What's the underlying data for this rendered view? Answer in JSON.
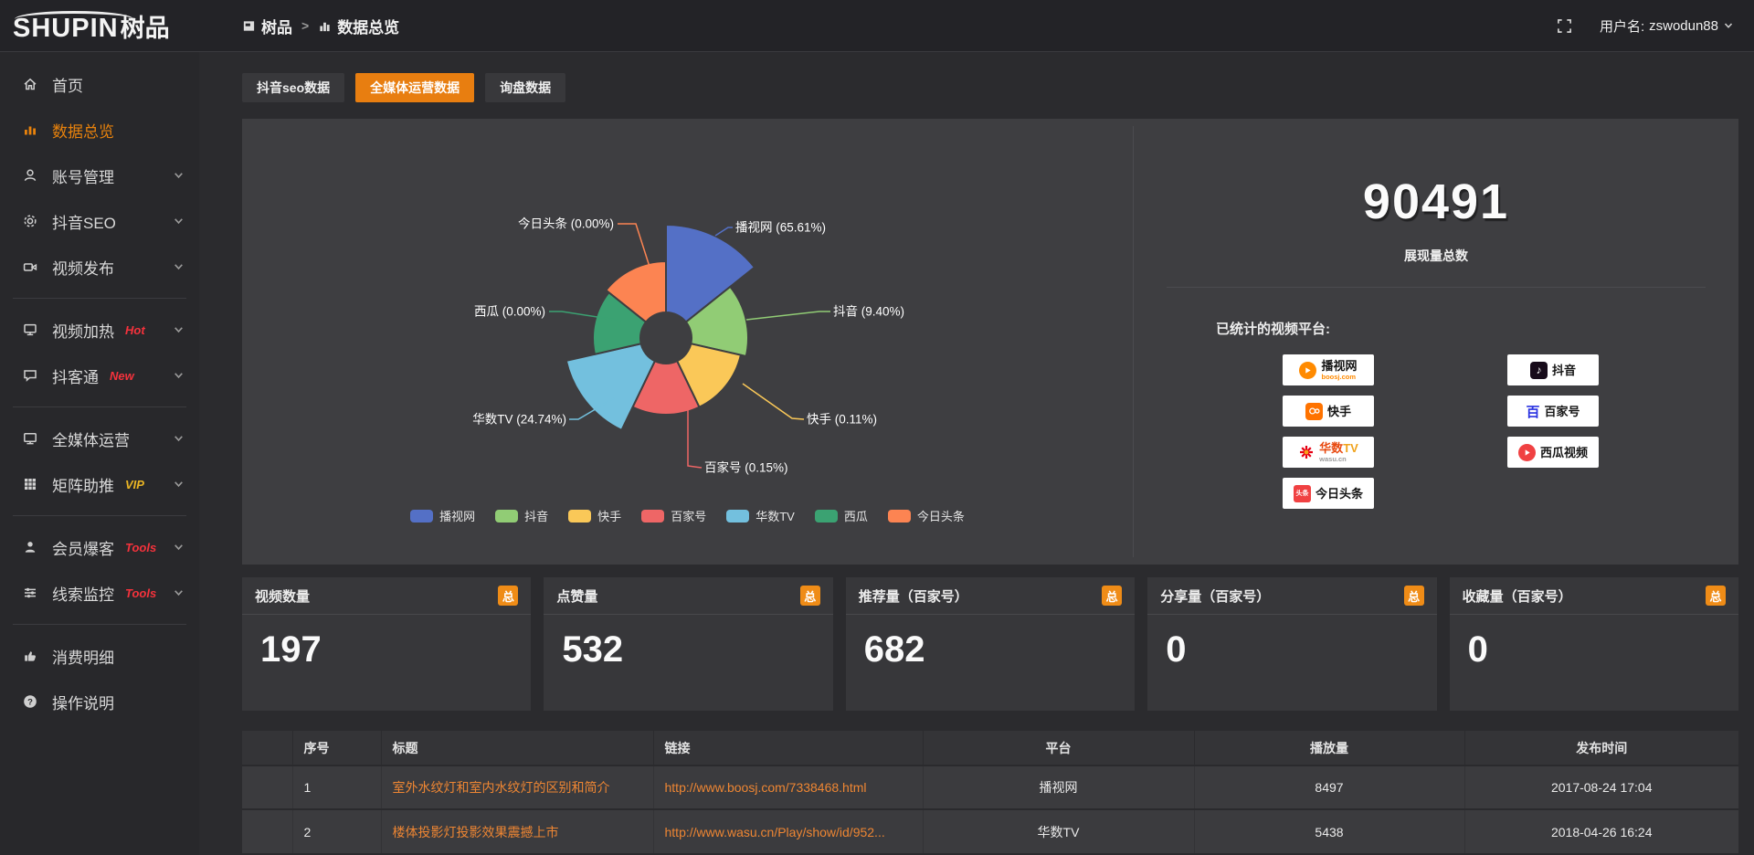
{
  "header": {
    "logo_en": "SHUPIN",
    "logo_cn": "树品",
    "breadcrumb": {
      "root": "树品",
      "separator": ">",
      "current": "数据总览"
    },
    "username_label": "用户名:",
    "username": "zswodun88"
  },
  "sidebar": {
    "groups": [
      [
        {
          "label": "首页",
          "icon": "home-icon"
        },
        {
          "label": "数据总览",
          "icon": "bar-chart-icon",
          "active": true
        },
        {
          "label": "账号管理",
          "icon": "user-icon",
          "chevron": true
        },
        {
          "label": "抖音SEO",
          "icon": "gear-icon",
          "chevron": true
        },
        {
          "label": "视频发布",
          "icon": "video-publish-icon",
          "chevron": true
        }
      ],
      [
        {
          "label": "视频加热",
          "tag": "Hot",
          "tag_color": "#f5323c",
          "icon": "screen-icon",
          "chevron": true
        },
        {
          "label": "抖客通",
          "tag": "New",
          "tag_color": "#f5323c",
          "icon": "chat-icon",
          "chevron": true
        }
      ],
      [
        {
          "label": "全媒体运营",
          "icon": "monitor-icon",
          "chevron": true
        },
        {
          "label": "矩阵助推",
          "tag": "VIP",
          "tag_color": "#e9b424",
          "icon": "grid-icon",
          "chevron": true
        }
      ],
      [
        {
          "label": "会员爆客",
          "tag": "Tools",
          "tag_color": "#f5323c",
          "icon": "member-icon",
          "chevron": true
        },
        {
          "label": "线索监控",
          "tag": "Tools",
          "tag_color": "#f5323c",
          "icon": "sliders-icon",
          "chevron": true
        }
      ],
      [
        {
          "label": "消费明细",
          "icon": "bill-icon"
        },
        {
          "label": "操作说明",
          "icon": "help-icon"
        }
      ]
    ]
  },
  "tabs": [
    {
      "label": "抖音seo数据",
      "active": false
    },
    {
      "label": "全媒体运营数据",
      "active": true
    },
    {
      "label": "询盘数据",
      "active": false
    }
  ],
  "chart_data": {
    "type": "pie",
    "subtype": "nightingale-rose",
    "legend_position": "bottom",
    "label_format": "name (value%)",
    "categories": [
      "播视网",
      "抖音",
      "快手",
      "百家号",
      "华数TV",
      "西瓜",
      "今日头条"
    ],
    "values_percent": [
      65.61,
      9.4,
      0.11,
      0.15,
      24.74,
      0.0,
      0.0
    ],
    "colors": [
      "#5470c6",
      "#91cc75",
      "#fac858",
      "#ee6666",
      "#73c0de",
      "#3ba272",
      "#fc8452"
    ]
  },
  "summary": {
    "total_value": "90491",
    "total_label": "展现量总数",
    "platforms_title": "已统计的视频平台:",
    "platforms": [
      {
        "name": "播视网",
        "sub": "boosj.com",
        "style": "boosj"
      },
      {
        "name": "抖音",
        "style": "douyin"
      },
      {
        "name": "快手",
        "style": "kuaishou"
      },
      {
        "name": "百家号",
        "style": "baijia"
      },
      {
        "name": "华数TV",
        "sub": "wasu.cn",
        "style": "wasu"
      },
      {
        "name": "西瓜视频",
        "style": "xigua"
      },
      {
        "name": "今日头条",
        "style": "toutiao"
      }
    ]
  },
  "stat_cards": [
    {
      "title": "视频数量",
      "badge": "总",
      "value": "197"
    },
    {
      "title": "点赞量",
      "badge": "总",
      "value": "532"
    },
    {
      "title": "推荐量（百家号）",
      "badge": "总",
      "value": "682"
    },
    {
      "title": "分享量（百家号）",
      "badge": "总",
      "value": "0"
    },
    {
      "title": "收藏量（百家号）",
      "badge": "总",
      "value": "0"
    }
  ],
  "table": {
    "columns": [
      "序号",
      "标题",
      "链接",
      "平台",
      "播放量",
      "发布时间"
    ],
    "rows": [
      {
        "index": "1",
        "title": "室外水纹灯和室内水纹灯的区别和简介",
        "link": "http://www.boosj.com/7338468.html",
        "platform": "播视网",
        "plays": "8497",
        "time": "2017-08-24 17:04"
      },
      {
        "index": "2",
        "title": "楼体投影灯投影效果震撼上市",
        "link": "http://www.wasu.cn/Play/show/id/952...",
        "platform": "华数TV",
        "plays": "5438",
        "time": "2018-04-26 16:24"
      }
    ]
  }
}
